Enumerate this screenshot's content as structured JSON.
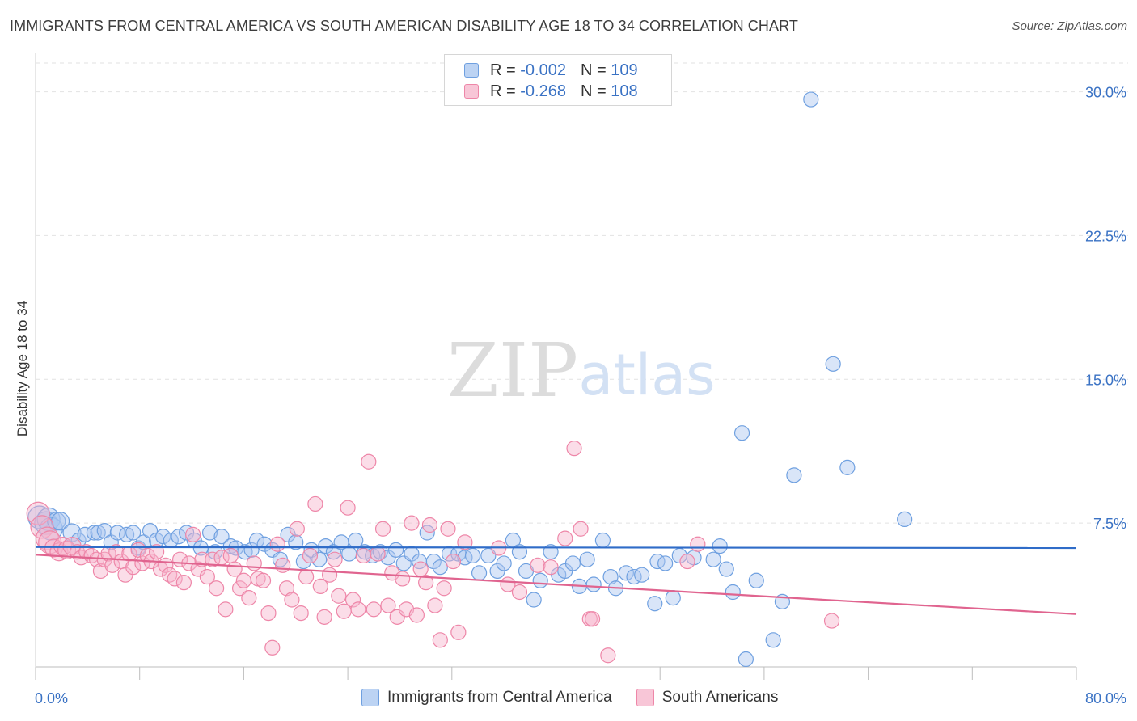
{
  "title": "IMMIGRANTS FROM CENTRAL AMERICA VS SOUTH AMERICAN DISABILITY AGE 18 TO 34 CORRELATION CHART",
  "source": "Source: ZipAtlas.com",
  "watermark": {
    "zip": "ZIP",
    "atlas": "atlas"
  },
  "legend": {
    "rows": [
      {
        "r_label": "R =",
        "r_value": "-0.002",
        "n_label": "N =",
        "n_value": "109",
        "color": "#6fa0e0"
      },
      {
        "r_label": "R =",
        "r_value": "-0.268",
        "n_label": "N =",
        "n_value": "108",
        "color": "#ee86a8"
      }
    ]
  },
  "bottom_legend": {
    "series1": "Immigrants from Central America",
    "series2": "South Americans"
  },
  "chart_data": {
    "type": "scatter",
    "title": "IMMIGRANTS FROM CENTRAL AMERICA VS SOUTH AMERICAN DISABILITY AGE 18 TO 34 CORRELATION CHART",
    "xlabel": "",
    "ylabel": "Disability Age 18 to 34",
    "xlim": [
      0,
      80
    ],
    "ylim": [
      0,
      31.5
    ],
    "x_ticks_labels": [
      "0.0%",
      "80.0%"
    ],
    "y_ticks": [
      7.5,
      15.0,
      22.5,
      30.0
    ],
    "y_tick_labels": [
      "7.5%",
      "15.0%",
      "22.5%",
      "30.0%"
    ],
    "grid": "horizontal dashed",
    "legend_placement": "top-center",
    "series": [
      {
        "name": "Immigrants from Central America",
        "color": "#6fa0e0",
        "r": -0.002,
        "n": 109,
        "trend": {
          "x": [
            0,
            80
          ],
          "y": [
            6.25,
            6.2
          ]
        },
        "points": [
          [
            0.3,
            7.8
          ],
          [
            0.8,
            7.5
          ],
          [
            1.0,
            7.7
          ],
          [
            1.2,
            7.2
          ],
          [
            1.6,
            7.6
          ],
          [
            1.9,
            7.6
          ],
          [
            2.8,
            7.0
          ],
          [
            3.3,
            6.6
          ],
          [
            3.8,
            6.9
          ],
          [
            4.5,
            7.0
          ],
          [
            4.8,
            7.0
          ],
          [
            5.3,
            7.1
          ],
          [
            5.8,
            6.5
          ],
          [
            6.3,
            7.0
          ],
          [
            7.0,
            6.9
          ],
          [
            7.5,
            7.0
          ],
          [
            7.9,
            6.2
          ],
          [
            8.3,
            6.5
          ],
          [
            8.8,
            7.1
          ],
          [
            9.3,
            6.6
          ],
          [
            9.8,
            6.8
          ],
          [
            10.4,
            6.6
          ],
          [
            11.0,
            6.8
          ],
          [
            11.6,
            7.0
          ],
          [
            12.2,
            6.6
          ],
          [
            12.7,
            6.2
          ],
          [
            13.4,
            7.0
          ],
          [
            13.8,
            6.0
          ],
          [
            14.3,
            6.8
          ],
          [
            15.0,
            6.3
          ],
          [
            15.4,
            6.2
          ],
          [
            16.1,
            6.0
          ],
          [
            16.6,
            6.1
          ],
          [
            17.0,
            6.6
          ],
          [
            17.6,
            6.4
          ],
          [
            18.2,
            6.1
          ],
          [
            18.8,
            5.6
          ],
          [
            19.4,
            6.9
          ],
          [
            20.0,
            6.5
          ],
          [
            20.6,
            5.5
          ],
          [
            21.2,
            6.1
          ],
          [
            21.8,
            5.6
          ],
          [
            22.3,
            6.3
          ],
          [
            22.9,
            6.0
          ],
          [
            23.5,
            6.5
          ],
          [
            24.1,
            5.9
          ],
          [
            24.6,
            6.6
          ],
          [
            25.3,
            6.0
          ],
          [
            25.9,
            5.8
          ],
          [
            26.5,
            6.0
          ],
          [
            27.1,
            5.7
          ],
          [
            27.7,
            6.1
          ],
          [
            28.3,
            5.4
          ],
          [
            28.9,
            5.9
          ],
          [
            29.5,
            5.5
          ],
          [
            30.1,
            7.0
          ],
          [
            30.6,
            5.5
          ],
          [
            31.1,
            5.2
          ],
          [
            31.8,
            5.9
          ],
          [
            32.5,
            5.9
          ],
          [
            33.0,
            5.7
          ],
          [
            33.6,
            5.8
          ],
          [
            34.1,
            4.9
          ],
          [
            34.8,
            5.8
          ],
          [
            35.5,
            5.0
          ],
          [
            36.0,
            5.4
          ],
          [
            36.7,
            6.6
          ],
          [
            37.2,
            6.0
          ],
          [
            37.7,
            5.0
          ],
          [
            38.3,
            3.5
          ],
          [
            38.8,
            4.5
          ],
          [
            39.6,
            6.0
          ],
          [
            40.2,
            4.8
          ],
          [
            40.7,
            5.0
          ],
          [
            41.3,
            5.4
          ],
          [
            41.8,
            4.2
          ],
          [
            42.4,
            5.6
          ],
          [
            42.9,
            4.3
          ],
          [
            43.6,
            6.6
          ],
          [
            44.2,
            4.7
          ],
          [
            44.6,
            4.1
          ],
          [
            45.4,
            4.9
          ],
          [
            46.0,
            4.7
          ],
          [
            46.6,
            4.8
          ],
          [
            47.6,
            3.3
          ],
          [
            47.8,
            5.5
          ],
          [
            48.4,
            5.4
          ],
          [
            49.0,
            3.6
          ],
          [
            49.5,
            5.8
          ],
          [
            50.6,
            5.7
          ],
          [
            52.1,
            5.6
          ],
          [
            52.6,
            6.3
          ],
          [
            53.1,
            5.1
          ],
          [
            53.6,
            3.9
          ],
          [
            54.3,
            12.2
          ],
          [
            55.4,
            4.5
          ],
          [
            56.7,
            1.4
          ],
          [
            57.4,
            3.4
          ],
          [
            58.3,
            10.0
          ],
          [
            59.6,
            29.6
          ],
          [
            61.3,
            15.8
          ],
          [
            62.4,
            10.4
          ],
          [
            66.8,
            7.7
          ],
          [
            54.6,
            0.4
          ]
        ]
      },
      {
        "name": "South Americans",
        "color": "#ee86a8",
        "r": -0.268,
        "n": 108,
        "trend": {
          "x": [
            0,
            80
          ],
          "y": [
            5.85,
            2.75
          ]
        },
        "points": [
          [
            0.2,
            8.0
          ],
          [
            0.5,
            7.3
          ],
          [
            0.9,
            6.7
          ],
          [
            1.1,
            6.5
          ],
          [
            1.4,
            6.2
          ],
          [
            1.8,
            6.0
          ],
          [
            2.1,
            6.3
          ],
          [
            2.4,
            6.1
          ],
          [
            2.8,
            6.3
          ],
          [
            3.2,
            6.0
          ],
          [
            3.5,
            5.7
          ],
          [
            3.9,
            6.0
          ],
          [
            4.3,
            5.8
          ],
          [
            4.7,
            5.6
          ],
          [
            5.0,
            5.0
          ],
          [
            5.3,
            5.6
          ],
          [
            5.6,
            5.9
          ],
          [
            5.9,
            5.3
          ],
          [
            6.2,
            6.0
          ],
          [
            6.6,
            5.5
          ],
          [
            6.9,
            4.8
          ],
          [
            7.2,
            5.9
          ],
          [
            7.5,
            5.2
          ],
          [
            7.9,
            6.1
          ],
          [
            8.2,
            5.4
          ],
          [
            8.6,
            5.8
          ],
          [
            8.9,
            5.5
          ],
          [
            9.3,
            6.0
          ],
          [
            9.6,
            5.1
          ],
          [
            10.0,
            5.3
          ],
          [
            10.3,
            4.8
          ],
          [
            10.7,
            4.6
          ],
          [
            11.1,
            5.6
          ],
          [
            11.4,
            4.4
          ],
          [
            11.8,
            5.4
          ],
          [
            12.1,
            6.9
          ],
          [
            12.5,
            5.1
          ],
          [
            12.8,
            5.6
          ],
          [
            13.2,
            4.7
          ],
          [
            13.6,
            5.6
          ],
          [
            13.9,
            4.1
          ],
          [
            14.3,
            5.7
          ],
          [
            14.6,
            3.0
          ],
          [
            15.0,
            5.8
          ],
          [
            15.3,
            5.1
          ],
          [
            15.7,
            4.1
          ],
          [
            16.0,
            4.5
          ],
          [
            16.4,
            3.6
          ],
          [
            16.8,
            5.4
          ],
          [
            17.1,
            4.6
          ],
          [
            17.5,
            4.5
          ],
          [
            17.9,
            2.8
          ],
          [
            18.2,
            1.0
          ],
          [
            18.6,
            6.4
          ],
          [
            19.0,
            5.3
          ],
          [
            19.3,
            4.1
          ],
          [
            19.7,
            3.5
          ],
          [
            20.1,
            7.2
          ],
          [
            20.4,
            2.8
          ],
          [
            20.8,
            4.7
          ],
          [
            21.1,
            5.8
          ],
          [
            21.5,
            8.5
          ],
          [
            21.9,
            4.2
          ],
          [
            22.2,
            2.6
          ],
          [
            22.6,
            4.8
          ],
          [
            23.0,
            5.6
          ],
          [
            23.3,
            3.7
          ],
          [
            23.7,
            2.9
          ],
          [
            24.0,
            8.3
          ],
          [
            24.4,
            3.5
          ],
          [
            24.8,
            3.0
          ],
          [
            25.2,
            5.8
          ],
          [
            25.6,
            10.7
          ],
          [
            26.0,
            3.0
          ],
          [
            26.3,
            5.9
          ],
          [
            26.7,
            7.2
          ],
          [
            27.1,
            3.2
          ],
          [
            27.4,
            4.9
          ],
          [
            27.8,
            2.6
          ],
          [
            28.2,
            4.6
          ],
          [
            28.5,
            3.0
          ],
          [
            28.9,
            7.5
          ],
          [
            29.3,
            2.7
          ],
          [
            29.6,
            5.1
          ],
          [
            30.0,
            4.4
          ],
          [
            30.3,
            7.4
          ],
          [
            30.7,
            3.2
          ],
          [
            31.1,
            1.4
          ],
          [
            31.4,
            4.1
          ],
          [
            31.7,
            7.2
          ],
          [
            32.1,
            5.5
          ],
          [
            32.5,
            1.8
          ],
          [
            33.0,
            6.5
          ],
          [
            35.6,
            6.2
          ],
          [
            36.3,
            4.3
          ],
          [
            37.2,
            3.9
          ],
          [
            38.6,
            5.3
          ],
          [
            39.6,
            5.2
          ],
          [
            40.7,
            6.7
          ],
          [
            41.4,
            11.4
          ],
          [
            41.9,
            7.2
          ],
          [
            42.6,
            2.5
          ],
          [
            42.8,
            2.5
          ],
          [
            44.0,
            0.6
          ],
          [
            50.1,
            5.5
          ],
          [
            50.9,
            6.4
          ],
          [
            61.2,
            2.4
          ]
        ]
      }
    ]
  }
}
